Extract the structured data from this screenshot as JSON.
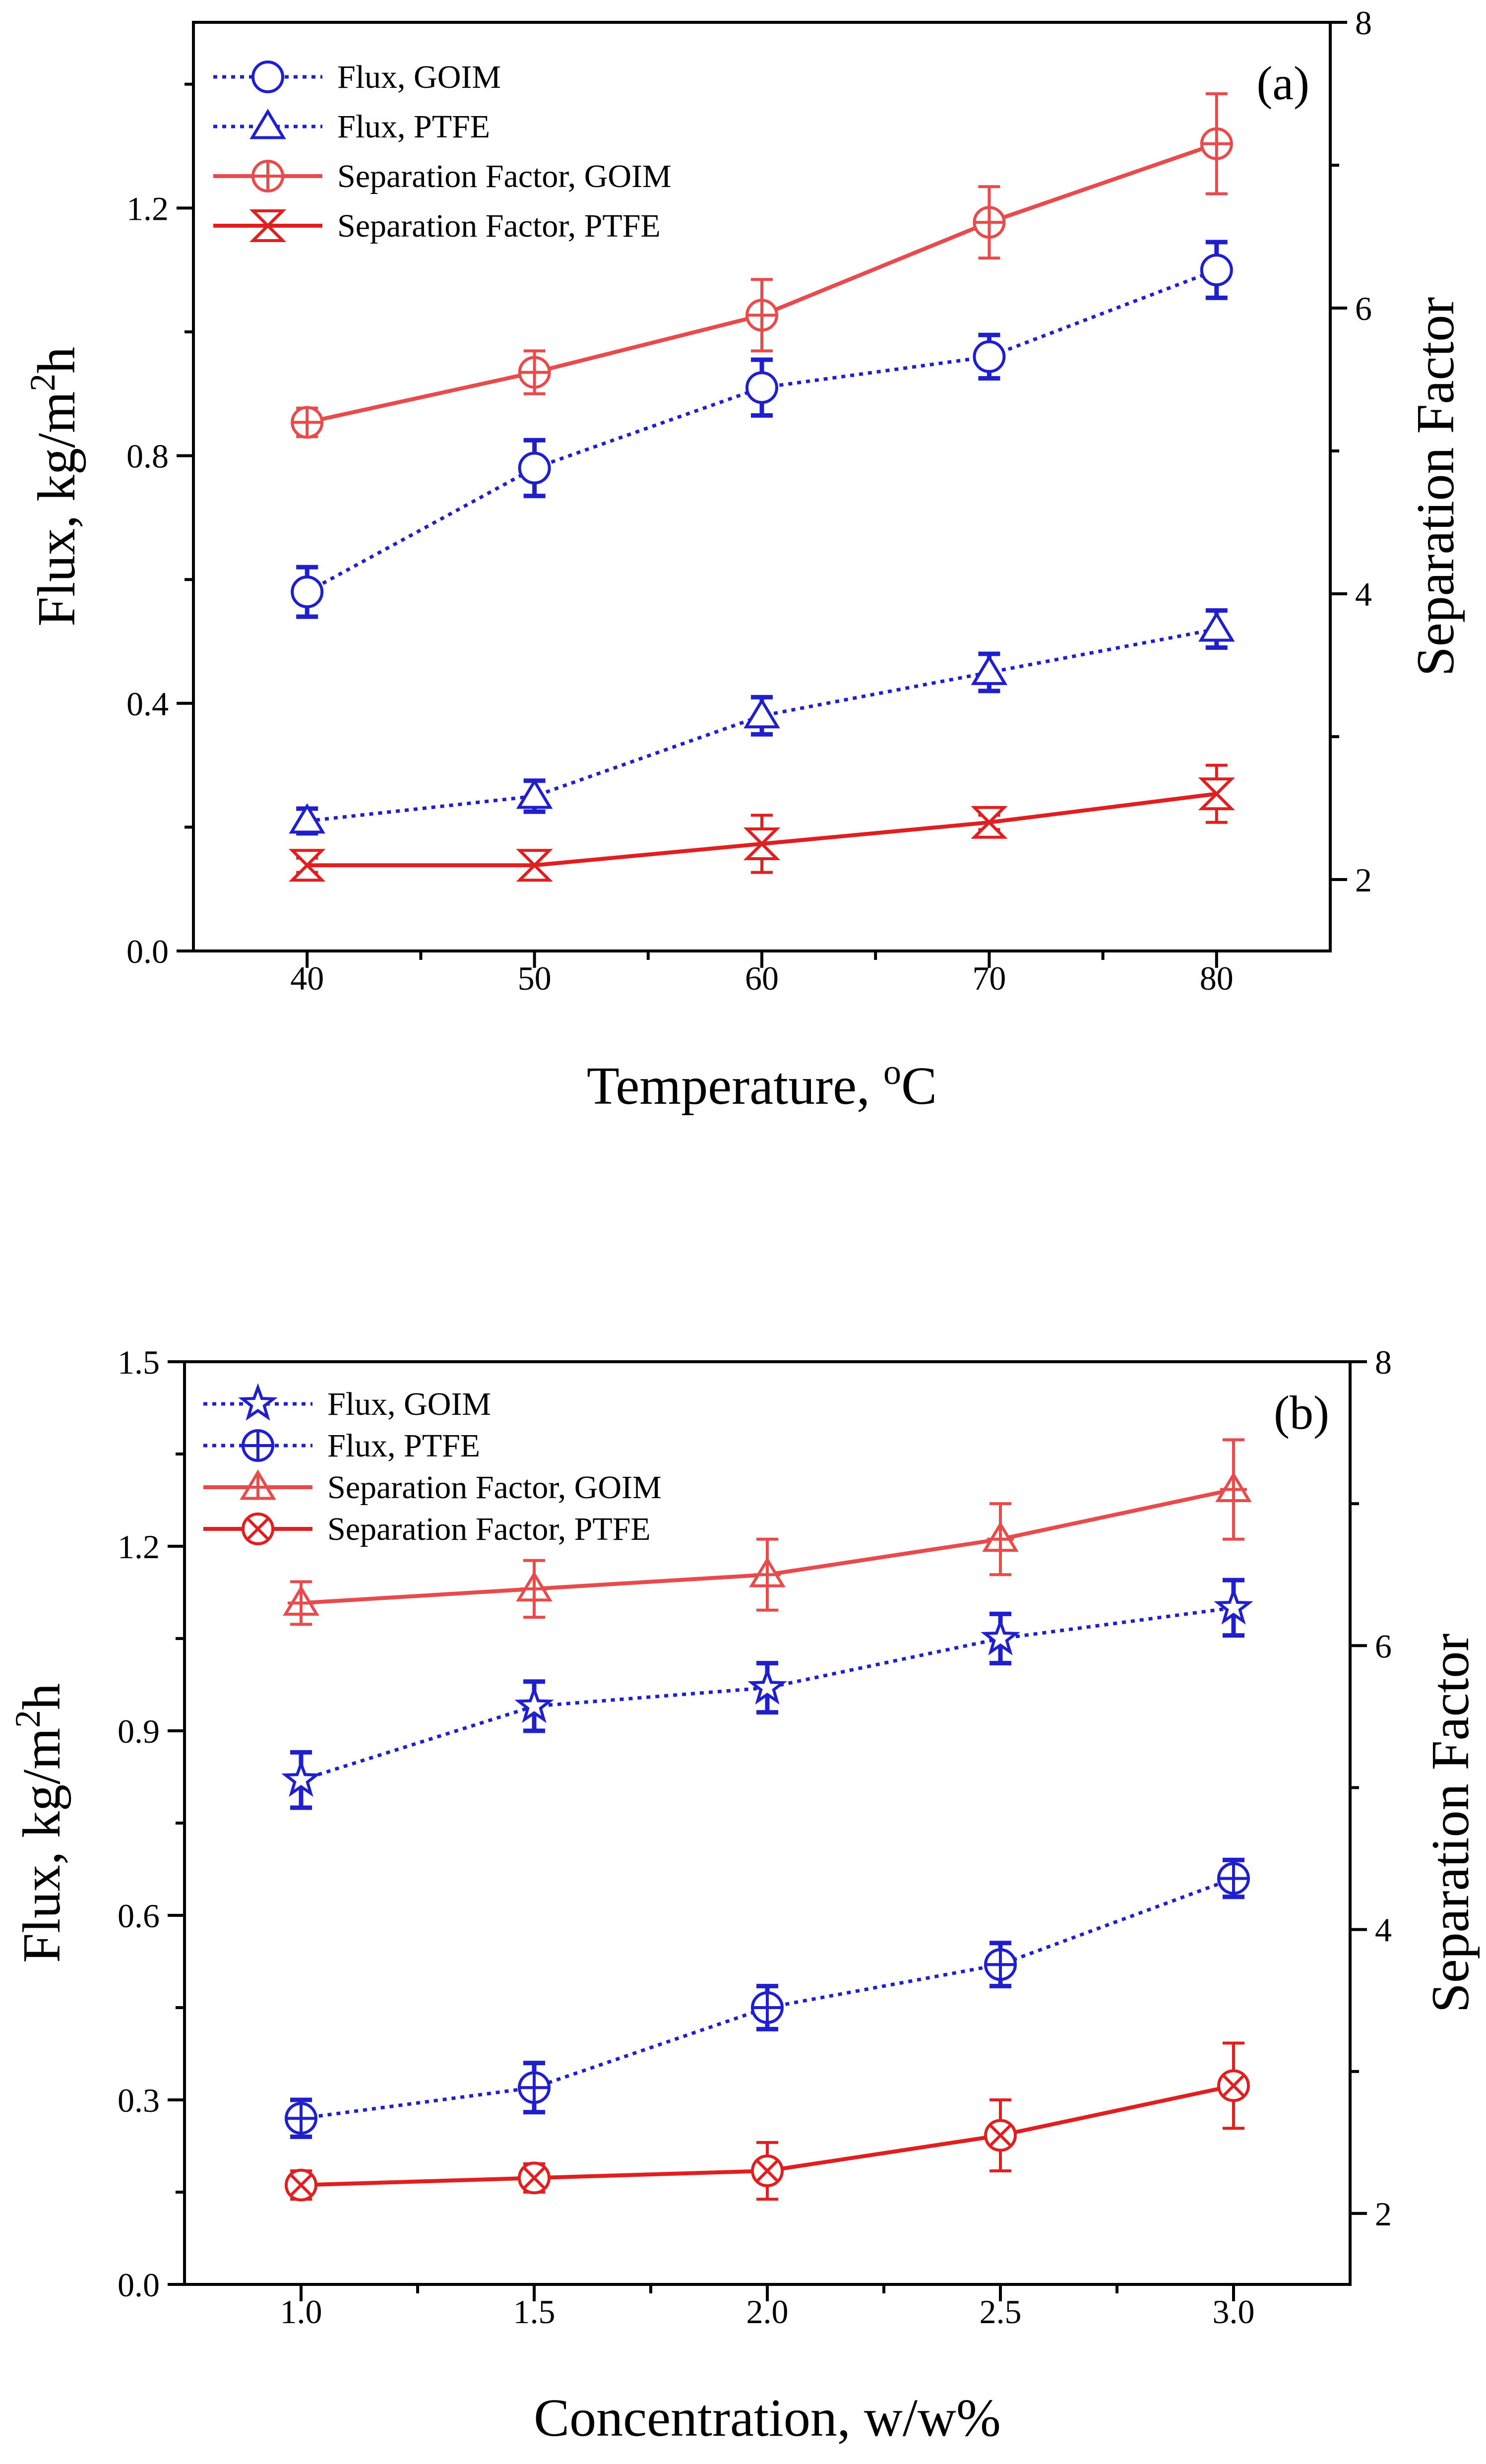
{
  "colors": {
    "blue": "#1f1fcc",
    "red": "#e84b4b",
    "red_dark": "#e02020"
  },
  "chart_data": [
    {
      "type": "line",
      "panel_label": "(a)",
      "xlabel": "Temperature, ",
      "xlabel_sup": "o",
      "xlabel_tail": "C",
      "ylabel": "Flux, kg/m",
      "ylabel_sup": "2",
      "ylabel_tail": "h",
      "y2label": "Separation Factor",
      "x": [
        40,
        50,
        60,
        70,
        80
      ],
      "xticks": [
        "40",
        "50",
        "60",
        "70",
        "80"
      ],
      "xlim": [
        35,
        85
      ],
      "ylim": [
        0.0,
        1.5
      ],
      "yticks": [
        "0.0",
        "0.4",
        "0.8",
        "1.2"
      ],
      "ytick_values": [
        0.0,
        0.4,
        0.8,
        1.2
      ],
      "y2lim": [
        1.5,
        8
      ],
      "y2ticks": [
        "2",
        "4",
        "6",
        "8"
      ],
      "y2tick_values": [
        2,
        4,
        6,
        8
      ],
      "series": [
        {
          "name": "Flux, GOIM",
          "axis": "left",
          "style": "dotted",
          "color": "#1f1fcc",
          "marker": "circle",
          "values": [
            0.58,
            0.78,
            0.91,
            0.96,
            1.1
          ],
          "errors": [
            0.04,
            0.045,
            0.045,
            0.035,
            0.045
          ]
        },
        {
          "name": "Flux, PTFE",
          "axis": "left",
          "style": "dotted",
          "color": "#1f1fcc",
          "marker": "triangle",
          "values": [
            0.21,
            0.25,
            0.38,
            0.45,
            0.52
          ],
          "errors": [
            0.02,
            0.025,
            0.03,
            0.03,
            0.03
          ]
        },
        {
          "name": "Separation Factor, GOIM",
          "axis": "right",
          "style": "solid",
          "color": "#e84b4b",
          "marker": "circle-plus",
          "values": [
            5.2,
            5.55,
            5.95,
            6.6,
            7.15
          ],
          "errors": [
            0.1,
            0.15,
            0.25,
            0.25,
            0.35
          ]
        },
        {
          "name": "Separation Factor, PTFE",
          "axis": "right",
          "style": "solid",
          "color": "#e02020",
          "marker": "x-triangle",
          "values": [
            2.1,
            2.1,
            2.25,
            2.4,
            2.6
          ],
          "errors": [
            0.05,
            0.1,
            0.2,
            0.05,
            0.2
          ]
        }
      ],
      "legend": "top-left"
    },
    {
      "type": "line",
      "panel_label": "(b)",
      "xlabel": "Concentration, w/w%",
      "ylabel": "Flux, kg/m",
      "ylabel_sup": "2",
      "ylabel_tail": "h",
      "y2label": "Separation Factor",
      "x": [
        1.0,
        1.5,
        2.0,
        2.5,
        3.0
      ],
      "xticks": [
        "1.0",
        "1.5",
        "2.0",
        "2.5",
        "3.0"
      ],
      "xlim": [
        0.75,
        3.25
      ],
      "ylim": [
        0.0,
        1.5
      ],
      "yticks": [
        "0.0",
        "0.3",
        "0.6",
        "0.9",
        "1.2",
        "1.5"
      ],
      "ytick_values": [
        0.0,
        0.3,
        0.6,
        0.9,
        1.2,
        1.5
      ],
      "y2lim": [
        1.5,
        8
      ],
      "y2ticks": [
        "2",
        "4",
        "6",
        "8"
      ],
      "y2tick_values": [
        2,
        4,
        6,
        8
      ],
      "series": [
        {
          "name": "Flux, GOIM",
          "axis": "left",
          "style": "dotted",
          "color": "#1f1fcc",
          "marker": "star",
          "values": [
            0.82,
            0.94,
            0.97,
            1.05,
            1.1
          ],
          "errors": [
            0.045,
            0.04,
            0.04,
            0.04,
            0.045
          ]
        },
        {
          "name": "Flux, PTFE",
          "axis": "left",
          "style": "dotted",
          "color": "#1f1fcc",
          "marker": "circle-plus",
          "values": [
            0.27,
            0.32,
            0.45,
            0.52,
            0.66
          ],
          "errors": [
            0.03,
            0.04,
            0.035,
            0.035,
            0.03
          ]
        },
        {
          "name": "Separation Factor, GOIM",
          "axis": "right",
          "style": "solid",
          "color": "#e84b4b",
          "marker": "triangle-plus",
          "values": [
            6.3,
            6.4,
            6.5,
            6.75,
            7.1
          ],
          "errors": [
            0.15,
            0.2,
            0.25,
            0.25,
            0.35
          ]
        },
        {
          "name": "Separation Factor, PTFE",
          "axis": "right",
          "style": "solid",
          "color": "#e02020",
          "marker": "circle-x",
          "values": [
            2.2,
            2.25,
            2.3,
            2.55,
            2.9
          ],
          "errors": [
            0.1,
            0.1,
            0.2,
            0.25,
            0.3
          ]
        }
      ],
      "legend": "top-left"
    }
  ]
}
